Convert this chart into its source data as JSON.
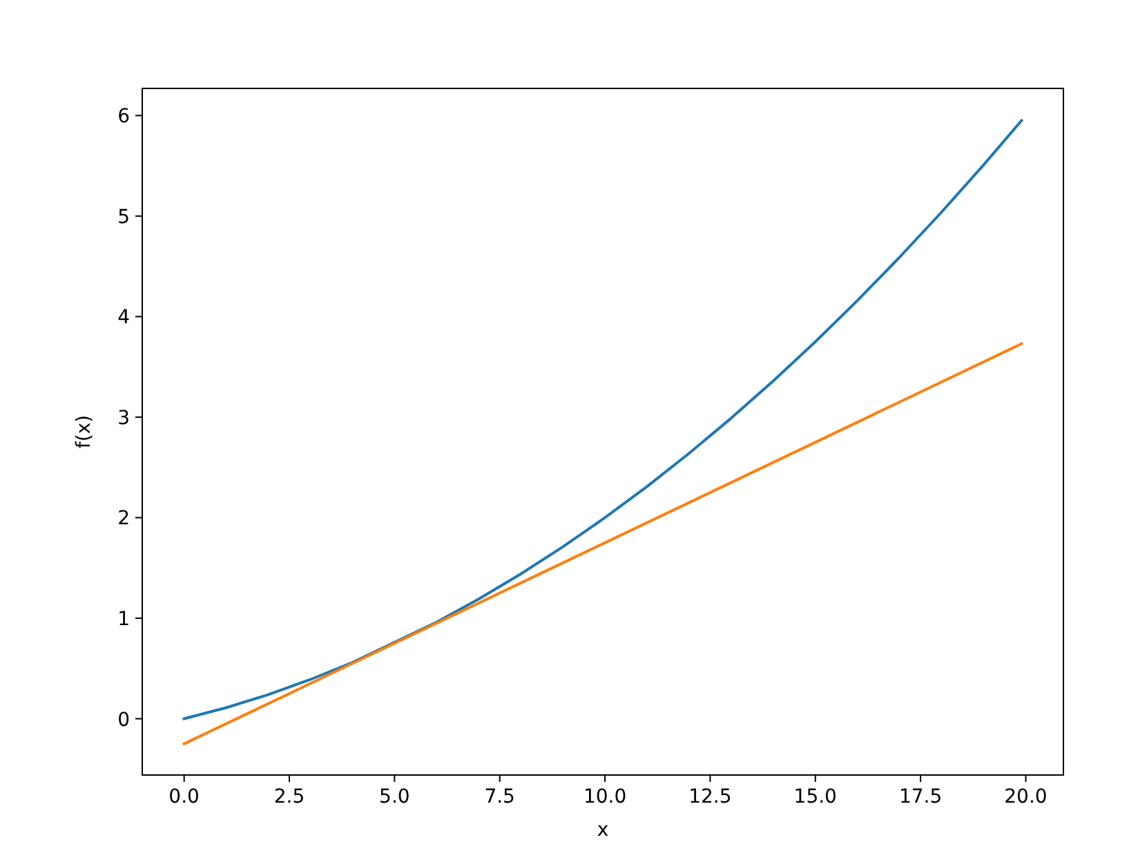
{
  "chart_data": {
    "type": "line",
    "xlabel": "x",
    "ylabel": "f(x)",
    "xlim": [
      -0.995,
      20.895
    ],
    "ylim": [
      -0.56,
      6.27
    ],
    "xticks": [
      {
        "value": 0,
        "label": "0.0"
      },
      {
        "value": 2.5,
        "label": "2.5"
      },
      {
        "value": 5,
        "label": "5.0"
      },
      {
        "value": 7.5,
        "label": "7.5"
      },
      {
        "value": 10,
        "label": "10.0"
      },
      {
        "value": 12.5,
        "label": "12.5"
      },
      {
        "value": 15,
        "label": "15.0"
      },
      {
        "value": 17.5,
        "label": "17.5"
      },
      {
        "value": 20,
        "label": "20.0"
      }
    ],
    "yticks": [
      0,
      1,
      2,
      3,
      4,
      5,
      6
    ],
    "series": [
      {
        "color": "#1f77b4",
        "x": [
          0,
          1,
          2,
          3,
          4,
          6,
          7,
          8,
          9,
          10,
          11,
          12,
          13,
          14,
          15,
          16,
          17,
          18,
          19,
          19.9
        ],
        "values": [
          0,
          0.11,
          0.24,
          0.39,
          0.56,
          0.96,
          1.19,
          1.44,
          1.71,
          2.0,
          2.31,
          2.64,
          2.99,
          3.36,
          3.75,
          4.16,
          4.59,
          5.04,
          5.51,
          5.95
        ]
      },
      {
        "color": "#ff7f0e",
        "x": [
          0,
          19.9
        ],
        "values": [
          -0.25,
          3.73
        ]
      }
    ]
  }
}
